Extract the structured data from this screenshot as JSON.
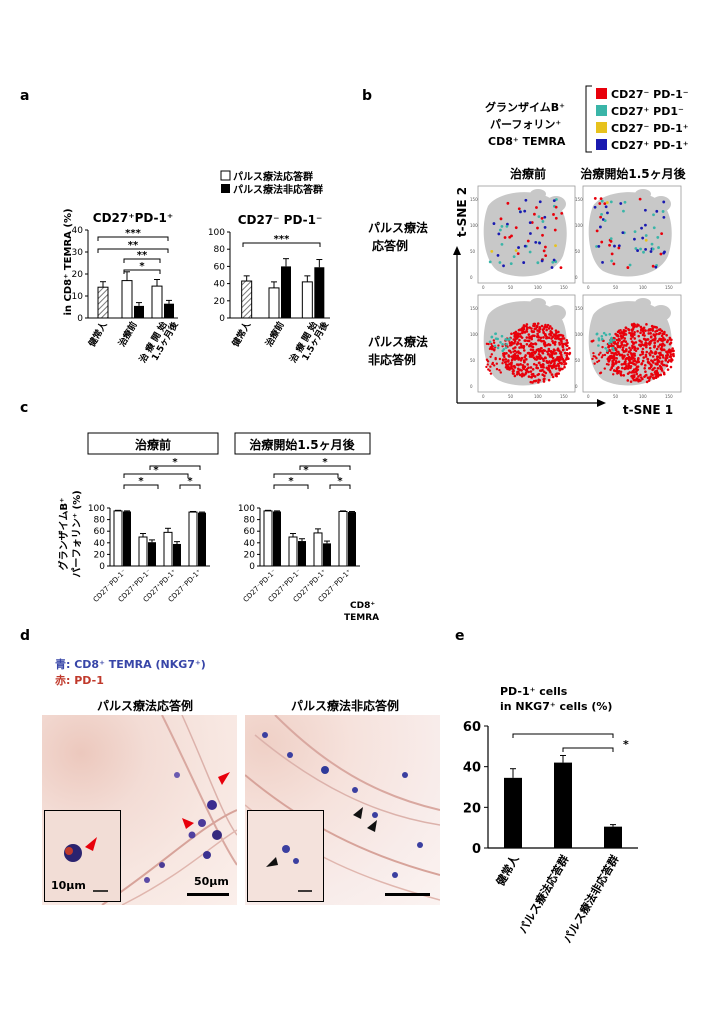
{
  "panel_labels": {
    "a": "a",
    "b": "b",
    "c": "c",
    "d": "d",
    "e": "e"
  },
  "colors": {
    "responder_fill": "#ffffff",
    "nonresponder_fill": "#000000",
    "healthy_hatch": "#7a7a7a",
    "cluster_red": "#e8000b",
    "cluster_teal": "#3ab5a8",
    "cluster_yellow": "#e7c21d",
    "cluster_navy": "#1a1ab0",
    "tsne_background": "#c8c8c8",
    "nkg7_blue": "#3846a8",
    "pd1_red": "#c0392b"
  },
  "panel_a": {
    "legend": {
      "responder": "パルス療法応答群",
      "nonresponder": "パルス療法非応答群"
    },
    "ylabel": "in CD8⁺ TEMRA (%)",
    "xticks": [
      "健常人",
      "治療前",
      "治 療 開 始\n1.5ヶ月後"
    ],
    "charts": [
      {
        "title": "CD27⁺PD-1⁺",
        "yticks": [
          "0",
          "10",
          "20",
          "30",
          "40"
        ],
        "significance": [
          "***",
          "**",
          "**",
          "*"
        ]
      },
      {
        "title": "CD27⁻ PD-1⁻",
        "yticks": [
          "0",
          "20",
          "40",
          "60",
          "80",
          "100"
        ],
        "significance": [
          "***"
        ]
      }
    ]
  },
  "panel_b": {
    "legend_title_lines": [
      "グランザイムB⁺",
      "パーフォリン⁺",
      "CD8⁺ TEMRA"
    ],
    "legend_items": [
      {
        "label": "CD27⁻ PD-1⁻",
        "color": "#e8000b"
      },
      {
        "label": "CD27⁺ PD1⁻",
        "color": "#3ab5a8"
      },
      {
        "label": "CD27⁻ PD-1⁺",
        "color": "#e7c21d"
      },
      {
        "label": "CD27⁺ PD-1⁺",
        "color": "#1a1ab0"
      }
    ],
    "column_titles": [
      "治療前",
      "治療開始1.5ヶ月後"
    ],
    "row_labels": [
      [
        "パルス療法",
        "応答例"
      ],
      [
        "パルス療法",
        "非応答例"
      ]
    ],
    "xaxis": "t-SNE 1",
    "yaxis": "t-SNE 2",
    "ticks": [
      "0",
      "50",
      "100",
      "150"
    ]
  },
  "panel_c": {
    "headers": [
      "治療前",
      "治療開始1.5ヶ月後"
    ],
    "ylabel_lines": [
      "グランザイムB⁺",
      "パーフォリン⁺ (%)"
    ],
    "yticks": [
      "0",
      "20",
      "40",
      "60",
      "80",
      "100"
    ],
    "categories": [
      "CD27⁻PD-1⁻",
      "CD27⁺PD-1⁻",
      "CD27⁺PD-1⁺",
      "CD27⁻PD-1⁺"
    ],
    "extra_label": [
      "CD8⁺",
      "TEMRA"
    ],
    "significance": [
      "*",
      "*",
      "*",
      "*"
    ]
  },
  "panel_d": {
    "legend_blue": "青: CD8⁺ TEMRA (NKG7⁺)",
    "legend_red": "赤: PD-1",
    "titles": [
      "パルス療法応答例",
      "パルス療法非応答例"
    ],
    "scale_small": "10μm",
    "scale_big": "50μm"
  },
  "chart_data": [
    {
      "type": "bar",
      "title": "CD27⁺PD-1⁺",
      "ylabel": "in CD8⁺ TEMRA (%)",
      "ylim": [
        0,
        40
      ],
      "categories": [
        "健常人",
        "治療前",
        "治 療 開 始 1.5ヶ月後"
      ],
      "series": [
        {
          "name": "パルス療法応答群",
          "values": [
            14,
            17,
            14.5
          ],
          "errors": [
            2.5,
            4,
            3
          ]
        },
        {
          "name": "パルス療法非応答群",
          "values": [
            null,
            5.5,
            6.5
          ],
          "errors": [
            null,
            1.5,
            1.5
          ]
        }
      ]
    },
    {
      "type": "bar",
      "title": "CD27⁻ PD-1⁻",
      "ylim": [
        0,
        100
      ],
      "categories": [
        "健常人",
        "治療前",
        "治 療 開 始 1.5ヶ月後"
      ],
      "series": [
        {
          "name": "パルス療法応答群",
          "values": [
            43,
            35,
            42
          ],
          "errors": [
            6,
            7,
            7
          ]
        },
        {
          "name": "パルス療法非応答群",
          "values": [
            null,
            60,
            59
          ],
          "errors": [
            null,
            9,
            9
          ]
        }
      ]
    },
    {
      "type": "bar",
      "title": "治療前",
      "ylabel": "グランザイムB⁺ パーフォリン⁺ (%)",
      "ylim": [
        0,
        100
      ],
      "categories": [
        "CD27⁻PD-1⁻",
        "CD27⁺PD-1⁻",
        "CD27⁺PD-1⁺",
        "CD27⁻PD-1⁺"
      ],
      "series": [
        {
          "values": [
            95,
            50,
            58,
            93
          ],
          "errors": [
            1,
            6,
            7,
            1
          ]
        },
        {
          "values": [
            94,
            41,
            38,
            92
          ],
          "errors": [
            1,
            4,
            4,
            1
          ]
        }
      ]
    },
    {
      "type": "bar",
      "title": "治療開始1.5ヶ月後",
      "ylim": [
        0,
        100
      ],
      "categories": [
        "CD27⁻PD-1⁻",
        "CD27⁺PD-1⁻",
        "CD27⁺PD-1⁺",
        "CD27⁻PD-1⁺"
      ],
      "series": [
        {
          "values": [
            95,
            50,
            57,
            94
          ],
          "errors": [
            1,
            6,
            7,
            1
          ]
        },
        {
          "values": [
            94,
            43,
            39,
            93
          ],
          "errors": [
            1,
            4,
            4,
            1
          ]
        }
      ]
    },
    {
      "type": "bar",
      "title": "PD-1⁺ cells in NKG7⁺ cells (%)",
      "ylim": [
        0,
        60
      ],
      "categories": [
        "健常人",
        "パルス療法応答群",
        "パルス療法非応答群"
      ],
      "values": [
        34.5,
        42,
        10.5
      ],
      "errors": [
        4.5,
        3.5,
        1
      ],
      "yticks": [
        "0",
        "20",
        "40",
        "60"
      ],
      "significance": [
        "*"
      ]
    }
  ]
}
